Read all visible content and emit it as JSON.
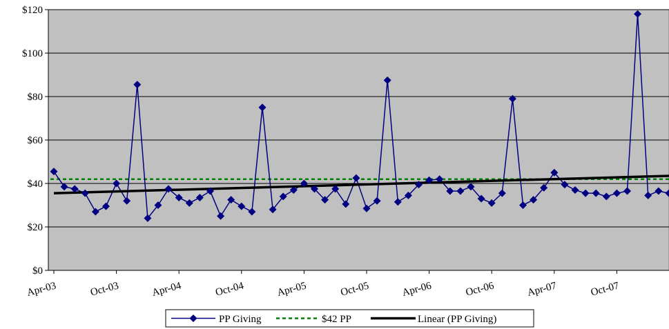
{
  "chart_data": {
    "type": "line",
    "title": "",
    "xlabel": "",
    "ylabel": "",
    "ylim": [
      0,
      120
    ],
    "y_ticks": [
      "$0",
      "$20",
      "$40",
      "$60",
      "$80",
      "$100",
      "$120"
    ],
    "y_tick_values": [
      0,
      20,
      40,
      60,
      80,
      100,
      120
    ],
    "x_ticks": [
      "Apr-03",
      "Oct-03",
      "Apr-04",
      "Oct-04",
      "Apr-05",
      "Oct-05",
      "Apr-06",
      "Oct-06",
      "Apr-07",
      "Oct-07"
    ],
    "x_tick_positions": [
      0,
      6,
      12,
      18,
      24,
      30,
      36,
      42,
      48,
      54
    ],
    "grid": true,
    "plot_background": "#c0c0c0",
    "legend_placement": "bottom",
    "series": [
      {
        "name": "PP Giving",
        "kind": "line-markers",
        "color": "#000080",
        "values": [
          45.5,
          38.5,
          37.5,
          35.5,
          27,
          29.5,
          40,
          32,
          85.5,
          24,
          30,
          37.5,
          33.5,
          31,
          33.5,
          36.5,
          25,
          32.5,
          29.5,
          27,
          75,
          28,
          34,
          37,
          40,
          37.5,
          32.5,
          37.5,
          30.5,
          42.5,
          28.5,
          32,
          87.5,
          31.5,
          34.5,
          39.5,
          41.5,
          42,
          36.5,
          36.5,
          38.5,
          33,
          31,
          35.5,
          79,
          30,
          32.5,
          38,
          45,
          39.5,
          37,
          35.5,
          35.5,
          34,
          35.5,
          36.5,
          118,
          34.5,
          36.5,
          35.5
        ]
      },
      {
        "name": "$42 PP",
        "kind": "dashed",
        "color": "#008000",
        "constant": 42
      },
      {
        "name": "Linear (PP Giving)",
        "kind": "trendline",
        "color": "#000000",
        "start": 35.5,
        "end": 43.5
      }
    ]
  }
}
